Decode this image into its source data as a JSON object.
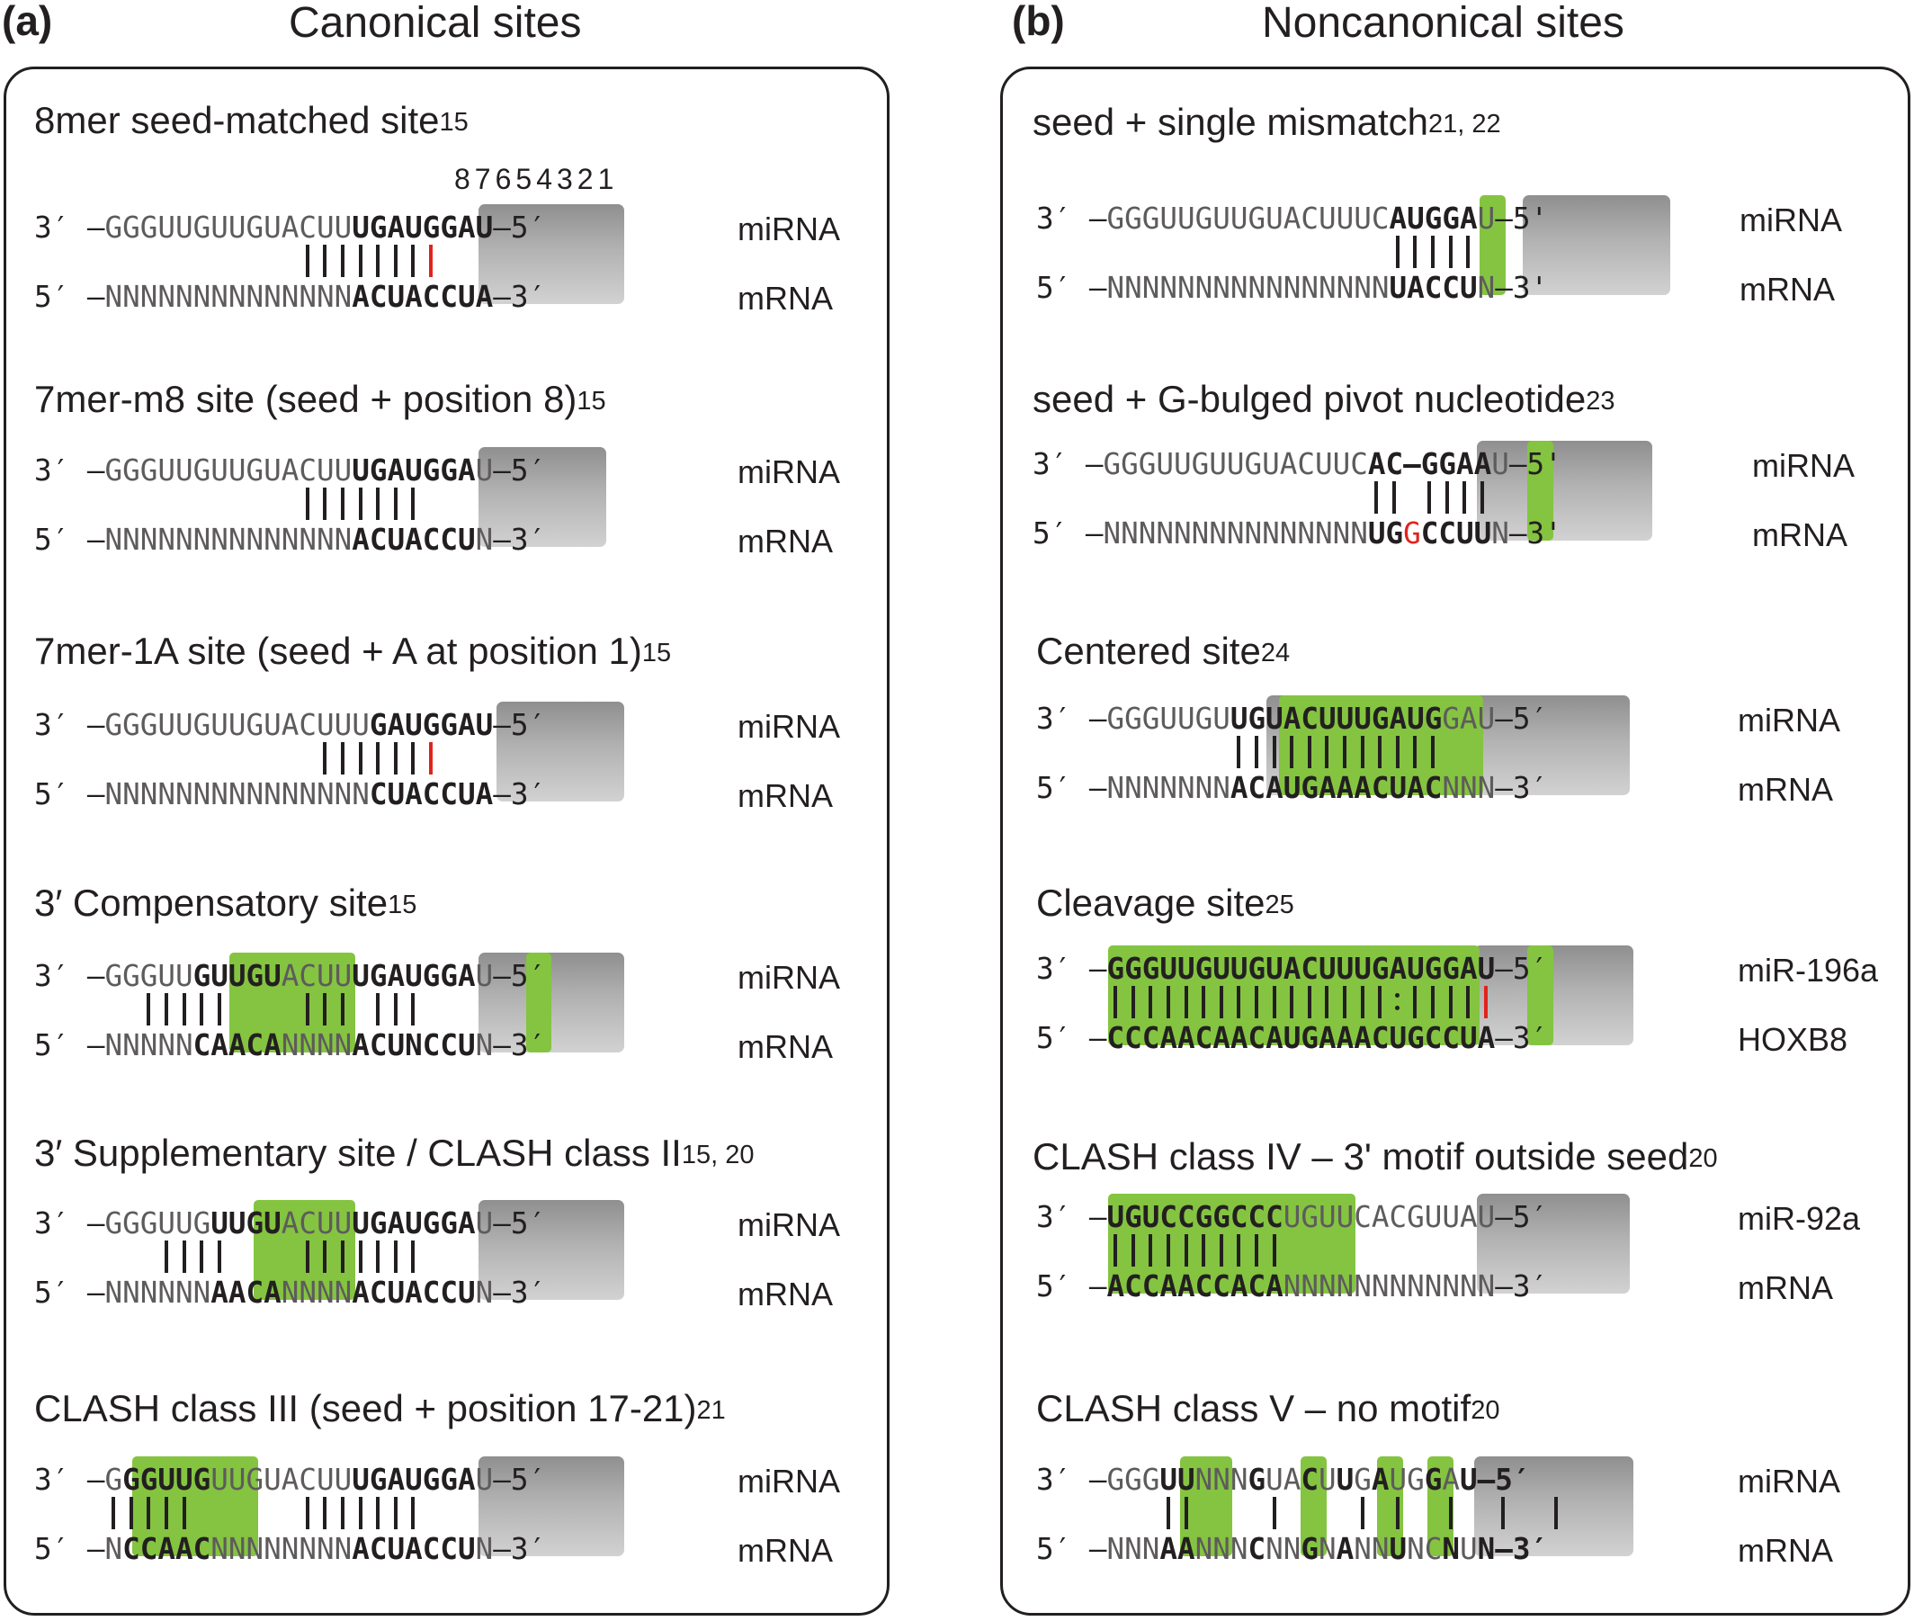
{
  "panel_a": {
    "letter": "(a)",
    "title": "Canonical sites",
    "blocks": [
      {
        "title": "8mer seed-matched site",
        "sup": "15",
        "positions": "87654321",
        "mirna": "3′ –GGGUUGUUGUACUU|UGAUGGAU|–5′",
        "mrna": "5′ –NNNNNNNNNNNNNN|ACUACCUA|–3′",
        "label1": "miRNA",
        "label2": "mRNA"
      },
      {
        "title": "7mer-m8 site (seed + position 8)",
        "sup": "15",
        "mirna": "3′ –GGGUUGUUGUACUU|UGAUGGA|U–5′",
        "mrna": "5′ –NNNNNNNNNNNNNN|ACUACCU|N–3′",
        "label1": "miRNA",
        "label2": "mRNA"
      },
      {
        "title": "7mer-1A site (seed + A at position 1)",
        "sup": "15",
        "mirna": "3′ –GGGUUGUUGUACUUU|GAUGGAU|–5′",
        "mrna": "5′ –NNNNNNNNNNNNNNN|CUACCUA|–3′",
        "label1": "miRNA",
        "label2": "mRNA"
      },
      {
        "title": "3′ Compensatory site",
        "sup": "15",
        "mirna": "3′ –GGGUU|GUUGU|ACUU|UGAUGGA|U–5′",
        "mrna": "5′ –NNNNN|CAACA|NNNN|ACUNCCU|N–3′",
        "label1": "miRNA",
        "label2": "mRNA"
      },
      {
        "title": "3′ Supplementary site / CLASH class II",
        "sup": "15, 20",
        "mirna": "3′ –GGGUUG|UUGU|ACUU|UGAUGGA|U–5′",
        "mrna": "5′ –NNNNNN|AACA|NNNN|ACUACCU|N–3′",
        "label1": "miRNA",
        "label2": "mRNA"
      },
      {
        "title": "CLASH class III (seed + position 17-21)",
        "sup": "21",
        "mirna": "3′ –G|GGUUG|UUGUACUU|UGAUGGA|U–5′",
        "mrna": "5′ –N|CCAAC|NNNNNNNN|ACUACCU|N–3′",
        "label1": "miRNA",
        "label2": "mRNA"
      }
    ]
  },
  "panel_b": {
    "letter": "(b)",
    "title": "Noncanonical sites",
    "blocks": [
      {
        "title": "seed + single mismatch",
        "sup": "21, 22",
        "mirna": "3′ –GGGUUGUUGUACUUUC|AUGGA|U–5'",
        "mrna": "5′ –NNNNNNNNNNNNNNNN|UACCU|N–3'",
        "label1": "miRNA",
        "label2": "mRNA"
      },
      {
        "title": "seed + G-bulged pivot nucleotide",
        "sup": "23",
        "mirna": "3′ –GGGUUGUUGUACUUC|AC–GGAA|U–5'",
        "mrna": "5′ –NNNNNNNNNNNNNNN|UGGCCUU|N–3'",
        "label1": "miRNA",
        "label2": "mRNA"
      },
      {
        "title": "Centered site",
        "sup": "24",
        "mirna": "3′ –GGGUUGU|UGUACUUUGAUG|GAU–5′",
        "mrna": "5′ –NNNNNNN|ACAUGAAACUAC|NNN–3′",
        "label1": "miRNA",
        "label2": "mRNA"
      },
      {
        "title": "Cleavage site",
        "sup": "25",
        "mirna": "3′ –|GGGUUGUUGUACUUUGAUGGAU|–5′",
        "mrna": "5′ –|CCCAACAACAUGAAACUGCCUA|–3′",
        "label1": "miR-196a",
        "label2": "HOXB8"
      },
      {
        "title": "CLASH class IV – 3' motif outside seed",
        "sup": "20",
        "mirna": "3′ –|UGUCCGGCCC|UGUUCACGUUAU–5′",
        "mrna": "5′ –|ACCAACCACA|NNNNNNNNNNNN–3′",
        "label1": "miR-92a",
        "label2": "mRNA"
      },
      {
        "title": "CLASH class V – no motif",
        "sup": "20",
        "mirna": "3′ –GGG|UU|NNN|G|UA|C|U|U|G|A|UG|G|A|U–5′",
        "mrna": "5′ –NNN|AA|NNN|C|NN|G|N|A|NN|U|NC|N|U|N–3′",
        "label1": "miRNA",
        "label2": "mRNA"
      }
    ]
  }
}
